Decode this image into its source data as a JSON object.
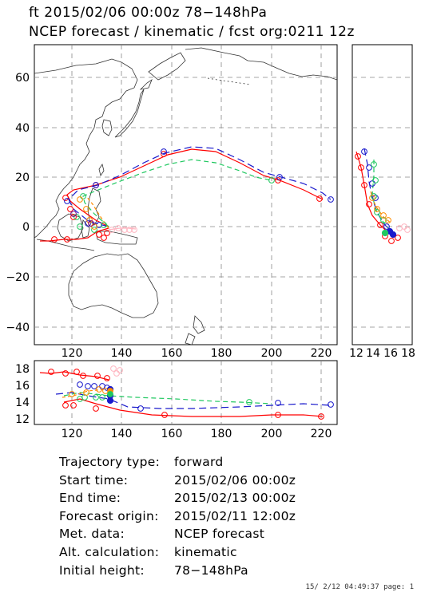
{
  "title_line1": "ft 2015/02/06 00:00z   78−148hPa",
  "title_line2": "NCEP forecast / kinematic / fcst org:0211 12z",
  "map_panel": {
    "y_ticks": [
      "60",
      "40",
      "20",
      "0",
      "−20",
      "−40"
    ],
    "x_ticks": [
      "120",
      "140",
      "160",
      "180",
      "200",
      "220"
    ]
  },
  "side_panel": {
    "x_ticks": [
      "12",
      "14",
      "16",
      "18"
    ]
  },
  "bottom_panel": {
    "y_ticks": [
      "18",
      "16",
      "14",
      "12"
    ],
    "x_ticks": [
      "120",
      "140",
      "160",
      "180",
      "200",
      "220"
    ]
  },
  "info": [
    {
      "label": "Trajectory type:",
      "value": "forward"
    },
    {
      "label": "Start time:",
      "value": "2015/02/06 00:00z"
    },
    {
      "label": "End time:",
      "value": "2015/02/13 00:00z"
    },
    {
      "label": "Forecast origin:",
      "value": "2015/02/11 12:00z"
    },
    {
      "label": "Met. data:",
      "value": "NCEP forecast"
    },
    {
      "label": "Alt. calculation:",
      "value": "kinematic"
    },
    {
      "label": "Initial height:",
      "value": "78−148hPa"
    }
  ],
  "footer": "15/ 2/12 04:49:37 page: 1",
  "colors": {
    "red": "#ff0000",
    "blue": "#1a1acc",
    "green": "#20c860",
    "orange": "#ff8c00",
    "pink": "#ffb6c1",
    "purple": "#800080",
    "grid": "#888888"
  }
}
